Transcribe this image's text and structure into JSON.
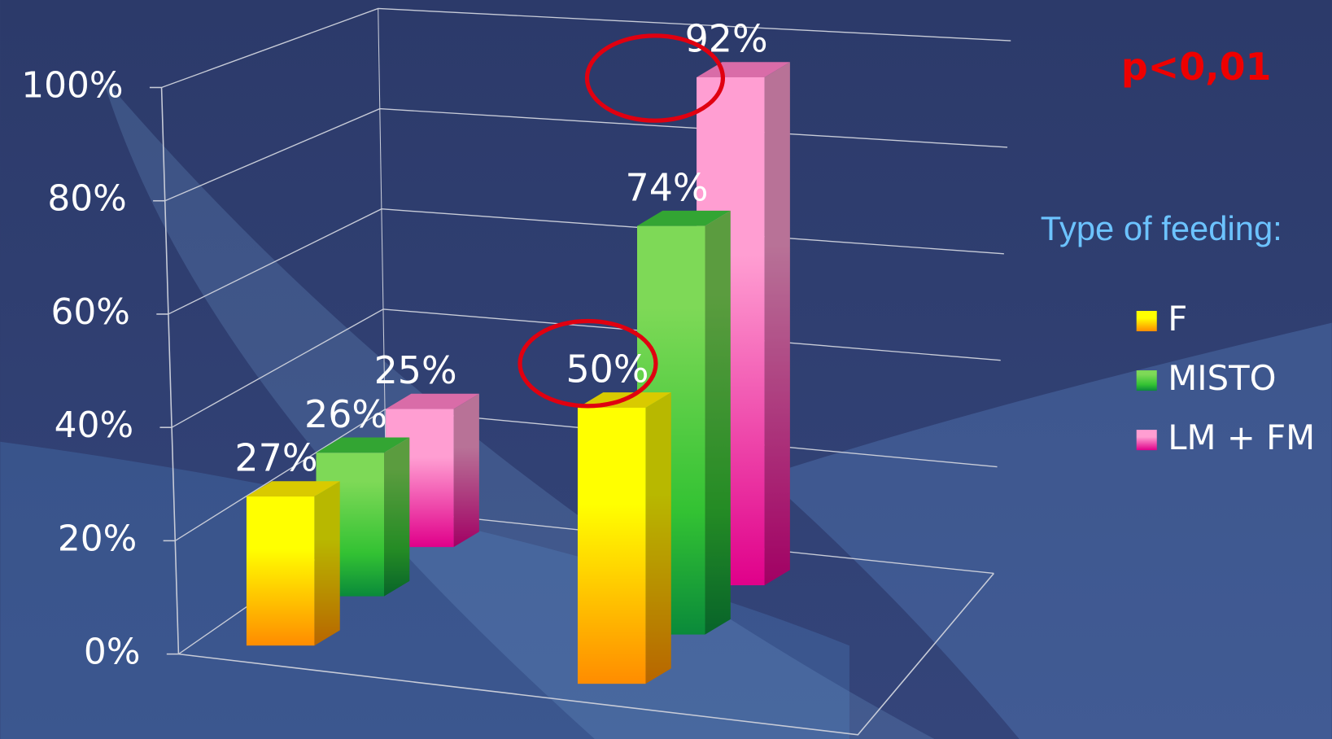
{
  "chart_data": {
    "type": "bar3d",
    "categories": [
      null,
      null
    ],
    "series": [
      {
        "name": "F",
        "color": "#ffee00",
        "values": [
          27,
          50
        ],
        "value_labels": [
          "27%",
          "50%"
        ]
      },
      {
        "name": "MISTO",
        "color": "#3cc23c",
        "values": [
          26,
          74
        ],
        "value_labels": [
          "26%",
          "74%"
        ]
      },
      {
        "name": "LM + FM",
        "color": "#ff7fc6",
        "values": [
          25,
          92
        ],
        "value_labels": [
          "25%",
          "92%"
        ]
      }
    ],
    "ylim": [
      0,
      100
    ],
    "yticks": [
      {
        "value": 0,
        "label": "0%"
      },
      {
        "value": 20,
        "label": "20%"
      },
      {
        "value": 40,
        "label": "40%"
      },
      {
        "value": 60,
        "label": "60%"
      },
      {
        "value": 80,
        "label": "80%"
      },
      {
        "value": 100,
        "label": "100%"
      }
    ],
    "grid": true,
    "legend_title": "Type of feeding:",
    "legend": "right",
    "annotation": "p<0,01"
  }
}
